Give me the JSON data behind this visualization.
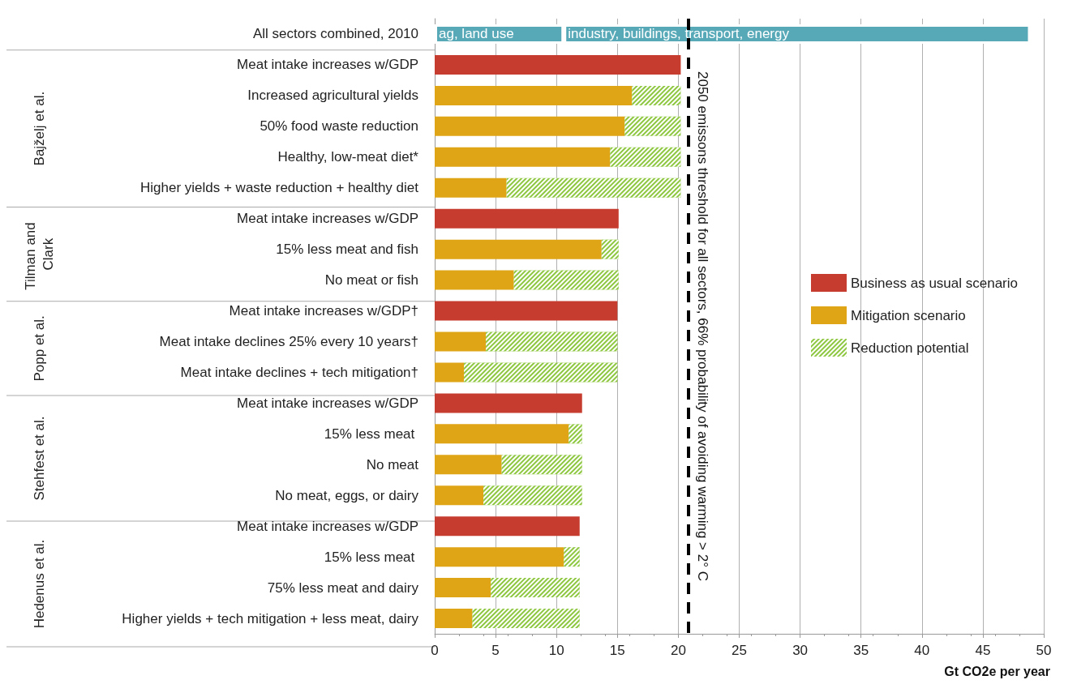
{
  "chart_data": {
    "type": "bar",
    "orientation": "horizontal",
    "stacked": true,
    "xlabel": "Gt CO2e per year",
    "categories": [
      "All sectors combined, 2010",
      "Meat intake increases w/GDP",
      "Increased agricultural yields",
      "50% food waste reduction",
      "Healthy, low-meat diet*",
      "Higher yields + waste reduction + healthy diet",
      "Meat intake increases w/GDP",
      "15% less meat and fish",
      "No meat or fish",
      "Meat intake increases w/GDP†",
      "Meat intake declines 25% every 10 years†",
      "Meat intake declines + tech mitigation†",
      "Meat intake increases w/GDP",
      "15% less meat ",
      "No meat",
      "No meat, eggs, or dairy",
      "Meat intake increases w/GDP",
      "15% less meat ",
      "75% less meat and dairy",
      "Higher yields + tech mitigation + less meat, dairy"
    ],
    "series": [
      {
        "name": "ag, land use",
        "color": "#57a9b8",
        "values": [
          10.6,
          null,
          null,
          null,
          null,
          null,
          null,
          null,
          null,
          null,
          null,
          null,
          null,
          null,
          null,
          null,
          null,
          null,
          null,
          null
        ]
      },
      {
        "name": "industry, buildings, transport, energy",
        "color": "#57a9b8",
        "values": [
          38.3,
          null,
          null,
          null,
          null,
          null,
          null,
          null,
          null,
          null,
          null,
          null,
          null,
          null,
          null,
          null,
          null,
          null,
          null,
          null
        ]
      },
      {
        "name": "Business as usual scenario",
        "color": "#c63d2f",
        "values": [
          null,
          20.2,
          null,
          null,
          null,
          null,
          15.1,
          null,
          null,
          15.0,
          null,
          null,
          12.1,
          null,
          null,
          null,
          11.9,
          null,
          null,
          null
        ]
      },
      {
        "name": "Mitigation scenario",
        "color": "#e0a516",
        "values": [
          null,
          null,
          16.2,
          15.6,
          14.4,
          5.9,
          null,
          13.7,
          6.5,
          null,
          4.2,
          2.4,
          null,
          11.0,
          5.5,
          4.0,
          null,
          10.6,
          4.6,
          3.1
        ]
      },
      {
        "name": "Reduction potential",
        "color": "#8dc63f",
        "values": [
          null,
          null,
          4.0,
          4.6,
          5.8,
          14.3,
          null,
          1.4,
          8.6,
          null,
          10.8,
          12.6,
          null,
          1.1,
          6.6,
          8.1,
          null,
          1.3,
          7.3,
          8.8
        ]
      }
    ],
    "xlim": [
      0,
      50
    ],
    "xticks": [
      0,
      5,
      10,
      15,
      20,
      25,
      30,
      35,
      40,
      45,
      50
    ],
    "grid": "x",
    "legend": "right",
    "ref_lines": [
      {
        "axis": "x",
        "value": 20.8,
        "label": "2050 emissons threshold for all sectors, 66% probability of avoiding warming > 2° C",
        "color": "#000000",
        "line_style": "dashed"
      }
    ],
    "annotations": [
      "Bajželj et al.",
      "Tilman and Clark",
      "Popp et al.",
      "Stehfest et al.",
      "Hedenus et al."
    ]
  }
}
